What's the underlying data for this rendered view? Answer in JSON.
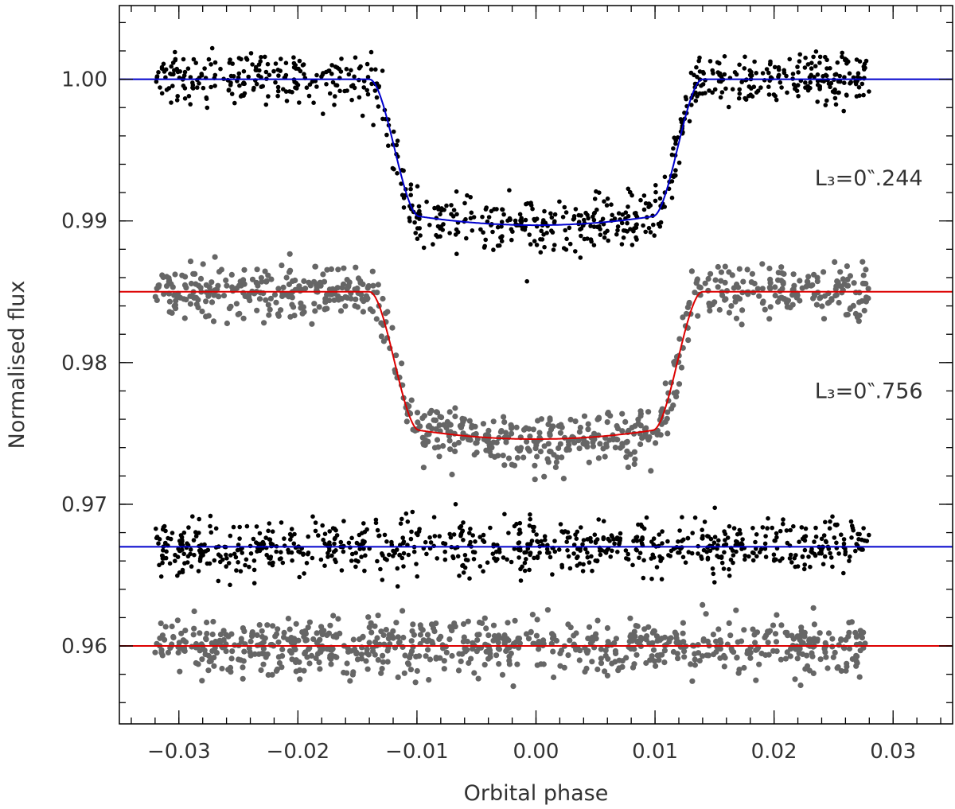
{
  "chart_data": {
    "type": "scatter",
    "title": "",
    "xlabel": "Orbital phase",
    "ylabel": "Normalised flux",
    "xlim": [
      -0.035,
      0.035
    ],
    "ylim": [
      0.9545,
      1.0052
    ],
    "x_ticks": [
      -0.03,
      -0.02,
      -0.01,
      0.0,
      0.01,
      0.02,
      0.03
    ],
    "x_tick_labels": [
      "−0.03",
      "−0.02",
      "−0.01",
      "0.00",
      "0.01",
      "0.02",
      "0.03"
    ],
    "x_minor_step": 0.002,
    "y_ticks": [
      0.96,
      0.97,
      0.98,
      0.99,
      1.0
    ],
    "y_tick_labels": [
      "0.96",
      "0.97",
      "0.98",
      "0.99",
      "1.00"
    ],
    "y_minor_step": 0.002,
    "grid": false,
    "legend": "none",
    "phase_range": [
      -0.032,
      0.028
    ],
    "points_per_series": 780,
    "series": [
      {
        "kind": "lightcurve",
        "color": "#000000",
        "marker_radius": 2.8,
        "baseline": 1.0,
        "depth": 0.0103,
        "ingress_start": 0.014,
        "ingress_end": 0.0098,
        "limb_darkening": 0.06,
        "scatter_sigma": 0.00095,
        "model_color": "#0000cc"
      },
      {
        "kind": "lightcurve",
        "color": "#666666",
        "marker_radius": 3.6,
        "baseline": 0.985,
        "depth": 0.0104,
        "ingress_start": 0.014,
        "ingress_end": 0.0098,
        "limb_darkening": 0.06,
        "scatter_sigma": 0.00095,
        "model_color": "#dd0000"
      },
      {
        "kind": "residuals",
        "color": "#000000",
        "marker_radius": 2.8,
        "baseline": 0.967,
        "scatter_sigma": 0.00095,
        "model_color": "#0000cc"
      },
      {
        "kind": "residuals",
        "color": "#666666",
        "marker_radius": 3.6,
        "baseline": 0.96,
        "scatter_sigma": 0.00095,
        "model_color": "#dd0000"
      }
    ],
    "annotations": [
      {
        "text": "L₃=0‶.244",
        "x": 0.0325,
        "y": 0.9925
      },
      {
        "text": "L₃=0‶.756",
        "x": 0.0325,
        "y": 0.9775
      }
    ]
  }
}
